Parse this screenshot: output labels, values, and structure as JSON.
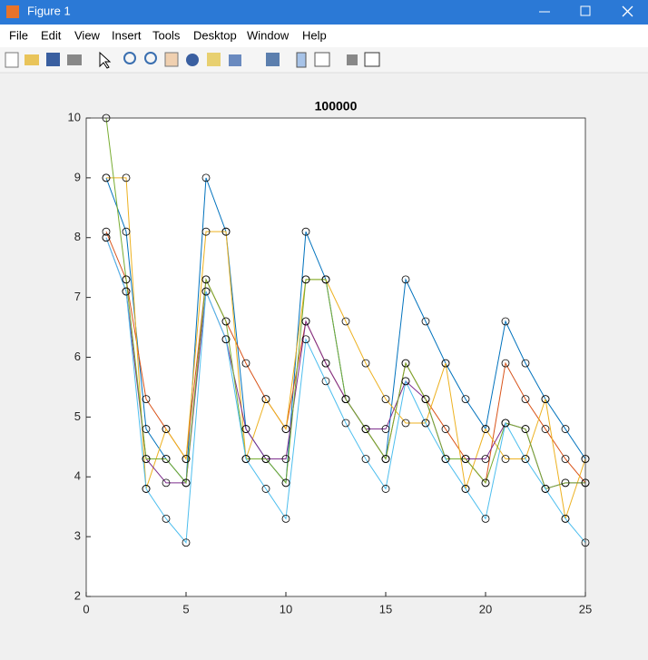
{
  "window": {
    "title": "Figure 1",
    "menu": [
      "File",
      "Edit",
      "View",
      "Insert",
      "Tools",
      "Desktop",
      "Window",
      "Help"
    ]
  },
  "chart_data": {
    "type": "line",
    "title": "100000",
    "x": [
      1,
      2,
      3,
      4,
      5,
      6,
      7,
      8,
      9,
      10,
      11,
      12,
      13,
      14,
      15,
      16,
      17,
      18,
      19,
      20,
      21,
      22,
      23,
      24,
      25
    ],
    "xlim": [
      0,
      25
    ],
    "xticks": [
      0,
      5,
      10,
      15,
      20,
      25
    ],
    "ylim": [
      2,
      10
    ],
    "yticks": [
      2,
      3,
      4,
      5,
      6,
      7,
      8,
      9,
      10
    ],
    "marker_color": "#000000",
    "series": [
      {
        "color": "#0072BD",
        "values": [
          9,
          8.1,
          4.8,
          4.3,
          3.9,
          9,
          8.1,
          4.8,
          4.3,
          3.9,
          8.1,
          7.3,
          5.3,
          4.8,
          4.3,
          7.3,
          6.6,
          5.9,
          5.3,
          4.8,
          6.6,
          5.9,
          5.3,
          4.8,
          4.3
        ]
      },
      {
        "color": "#D95319",
        "values": [
          8.1,
          7.3,
          5.3,
          4.8,
          4.3,
          7.3,
          6.6,
          5.9,
          5.3,
          4.8,
          6.6,
          5.9,
          5.3,
          4.8,
          4.3,
          5.9,
          5.3,
          4.8,
          4.3,
          3.9,
          5.9,
          5.3,
          4.8,
          4.3,
          3.9
        ]
      },
      {
        "color": "#EDB120",
        "values": [
          9,
          9,
          3.8,
          4.8,
          4.3,
          8.1,
          8.1,
          4.3,
          5.3,
          4.8,
          7.3,
          7.3,
          6.6,
          5.9,
          5.3,
          4.9,
          4.9,
          5.9,
          3.8,
          4.8,
          4.3,
          4.3,
          5.3,
          3.3,
          4.3
        ]
      },
      {
        "color": "#7E2F8E",
        "values": [
          8,
          7.1,
          4.3,
          3.9,
          3.9,
          7.1,
          6.3,
          4.8,
          4.3,
          4.3,
          6.6,
          5.9,
          5.3,
          4.8,
          4.8,
          5.6,
          5.3,
          4.3,
          4.3,
          4.3,
          4.9,
          4.8,
          3.8,
          3.9,
          3.9
        ]
      },
      {
        "color": "#77AC30",
        "values": [
          10,
          7.3,
          4.3,
          4.3,
          3.9,
          7.3,
          6.6,
          4.3,
          4.3,
          3.9,
          7.3,
          7.3,
          5.3,
          4.8,
          4.3,
          5.9,
          5.3,
          4.3,
          4.3,
          3.9,
          4.9,
          4.8,
          3.8,
          3.9,
          3.9
        ]
      },
      {
        "color": "#4DBEEE",
        "values": [
          8,
          7.1,
          3.8,
          3.3,
          2.9,
          7.1,
          6.3,
          4.3,
          3.8,
          3.3,
          6.3,
          5.6,
          4.9,
          4.3,
          3.8,
          5.6,
          4.9,
          4.3,
          3.8,
          3.3,
          4.9,
          4.3,
          3.8,
          3.3,
          2.9
        ]
      }
    ]
  }
}
